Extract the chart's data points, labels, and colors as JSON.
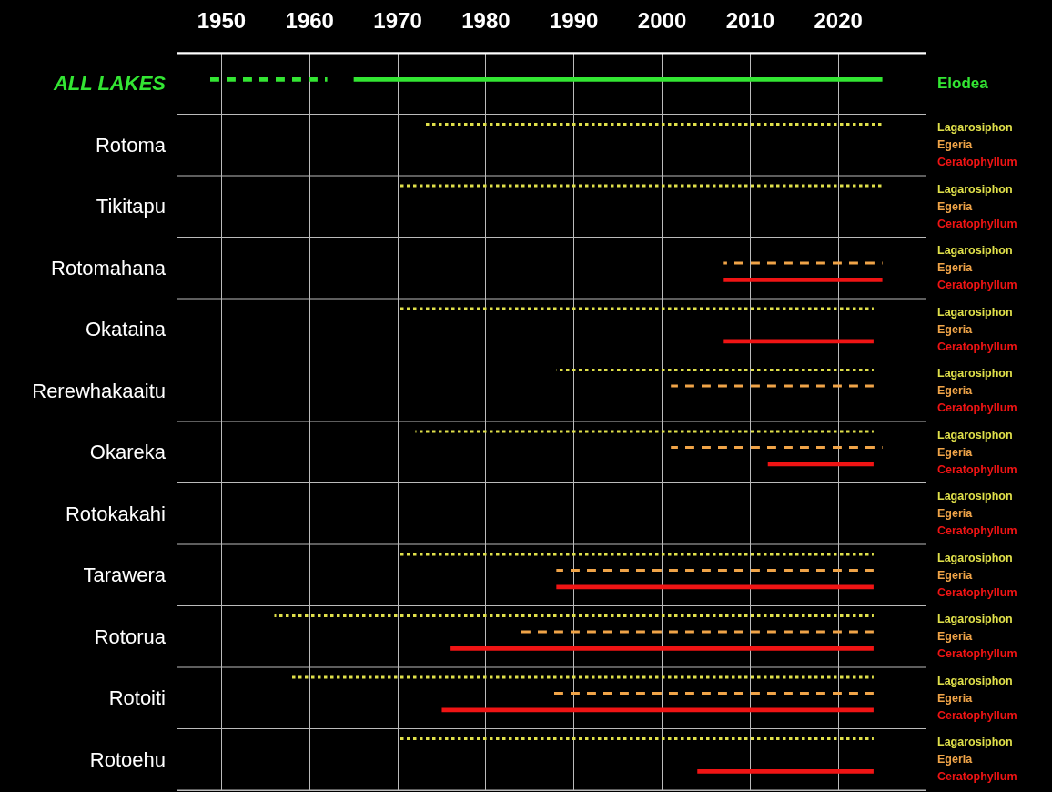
{
  "chart_data": {
    "type": "bar",
    "orientation": "horizontal",
    "categories": [
      "ALL LAKES",
      "Rotoma",
      "Tikitapu",
      "Rotomahana",
      "Okataina",
      "Rerewhakaaitu",
      "Okareka",
      "Rotokakahi",
      "Tarawera",
      "Rotorua",
      "Rotoiti",
      "Rotoehu"
    ],
    "series": [
      {
        "color": "#33e633",
        "line_style": "dashed",
        "base": [
          1948,
          null,
          null,
          null,
          null,
          null,
          null,
          null,
          null,
          null,
          null,
          null
        ],
        "values": [
          14,
          null,
          null,
          null,
          null,
          null,
          null,
          null,
          null,
          null,
          null,
          null
        ]
      },
      {
        "name": "Elodea",
        "color": "#33e633",
        "line_style": "solid",
        "base": [
          1965,
          null,
          null,
          null,
          null,
          null,
          null,
          null,
          null,
          null,
          null,
          null
        ],
        "values": [
          60,
          null,
          null,
          null,
          null,
          null,
          null,
          null,
          null,
          null,
          null,
          null
        ]
      },
      {
        "name": "Lagarosiphon",
        "color": "#e0e04a",
        "line_style": "dotted",
        "base": [
          null,
          1973,
          1970,
          null,
          1970,
          1988,
          1972,
          null,
          1970,
          1956,
          1958,
          1970
        ],
        "values": [
          null,
          52,
          55,
          null,
          54,
          36,
          52,
          null,
          54,
          68,
          66,
          54
        ]
      },
      {
        "name": "Egeria",
        "color": "#f0a448",
        "line_style": "dashed",
        "base": [
          null,
          null,
          null,
          2007,
          null,
          2001,
          2001,
          null,
          1988,
          1984,
          1987,
          null
        ],
        "values": [
          null,
          null,
          null,
          18,
          null,
          23,
          24,
          null,
          36,
          40,
          37,
          null
        ]
      },
      {
        "name": "Ceratophyllum",
        "color": "#f01414",
        "line_style": "solid",
        "base": [
          null,
          null,
          null,
          2007,
          2007,
          null,
          2012,
          null,
          1988,
          1976,
          1975,
          2004
        ],
        "values": [
          null,
          null,
          null,
          18,
          17,
          null,
          12,
          null,
          36,
          48,
          49,
          20
        ]
      }
    ],
    "xlim": [
      1945,
      2030
    ],
    "xticks": [
      1950,
      1960,
      1970,
      1980,
      1990,
      2000,
      2010,
      2020
    ],
    "grid": true,
    "legend": "right"
  }
}
